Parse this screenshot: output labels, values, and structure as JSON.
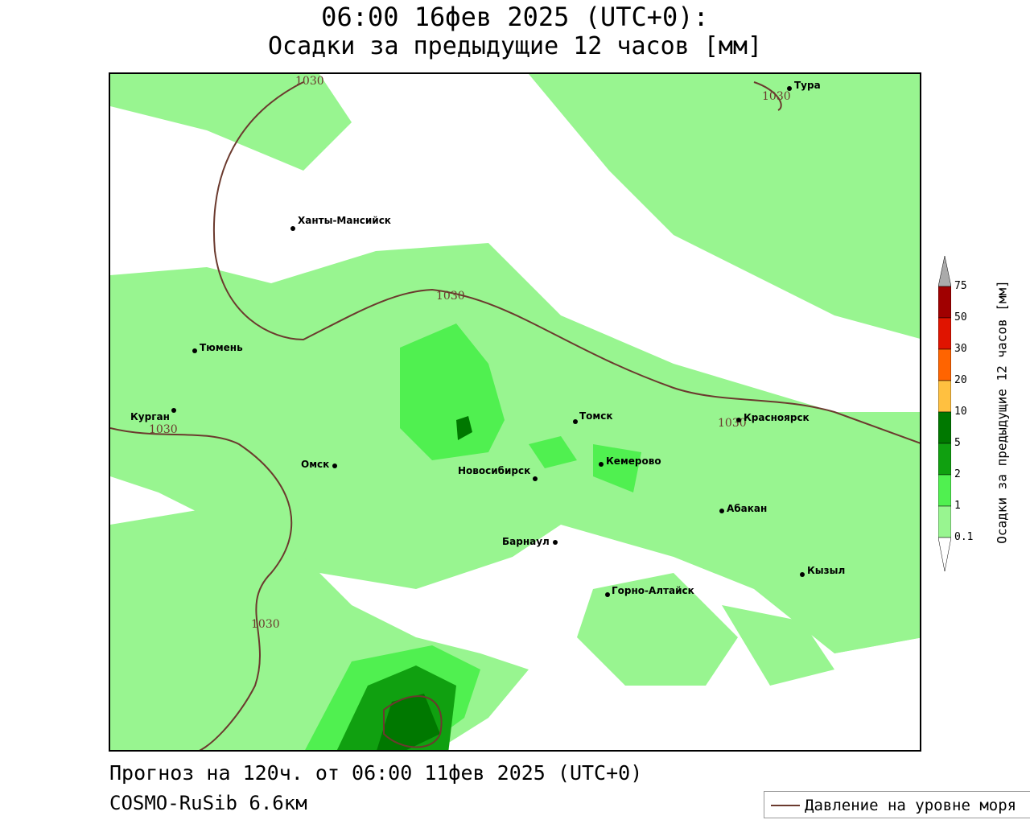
{
  "title": {
    "line1": "06:00 16фев 2025 (UTC+0):",
    "line2": "Осадки за предыдущие 12 часов [мм]"
  },
  "cities": [
    {
      "name": "Тура"
    },
    {
      "name": "Ханты-Мансийск"
    },
    {
      "name": "Тюмень"
    },
    {
      "name": "Курган"
    },
    {
      "name": "Омск"
    },
    {
      "name": "Новосибирск"
    },
    {
      "name": "Томск"
    },
    {
      "name": "Кемерово"
    },
    {
      "name": "Красноярск"
    },
    {
      "name": "Абакан"
    },
    {
      "name": "Барнаул"
    },
    {
      "name": "Горно-Алтайск"
    },
    {
      "name": "Кызыл"
    }
  ],
  "isobar_labels": [
    "1030",
    "1030",
    "1030",
    "1030",
    "1030",
    "1030"
  ],
  "colorbar": {
    "title": "Осадки за предыдущие 12 часов [мм]",
    "ticks": [
      "75",
      "50",
      "30",
      "20",
      "10",
      "5",
      "2",
      "1",
      "0.1"
    ],
    "colors": {
      "above": "#aaaaaa",
      "50-75": "#a00000",
      "30-50": "#e01400",
      "20-30": "#ff6400",
      "10-20": "#ffc040",
      "5-10": "#007800",
      "2-5": "#10a010",
      "1-2": "#50f050",
      "0.1-1": "#98f590",
      "below": "#ffffff"
    }
  },
  "footer": {
    "forecast": "Прогноз на 120ч. от 06:00 11фев 2025 (UTC+0)",
    "model": "COSMO-RuSib 6.6км"
  },
  "legend": {
    "label": "Давление на уровне моря",
    "color": "#6b3a2e"
  }
}
